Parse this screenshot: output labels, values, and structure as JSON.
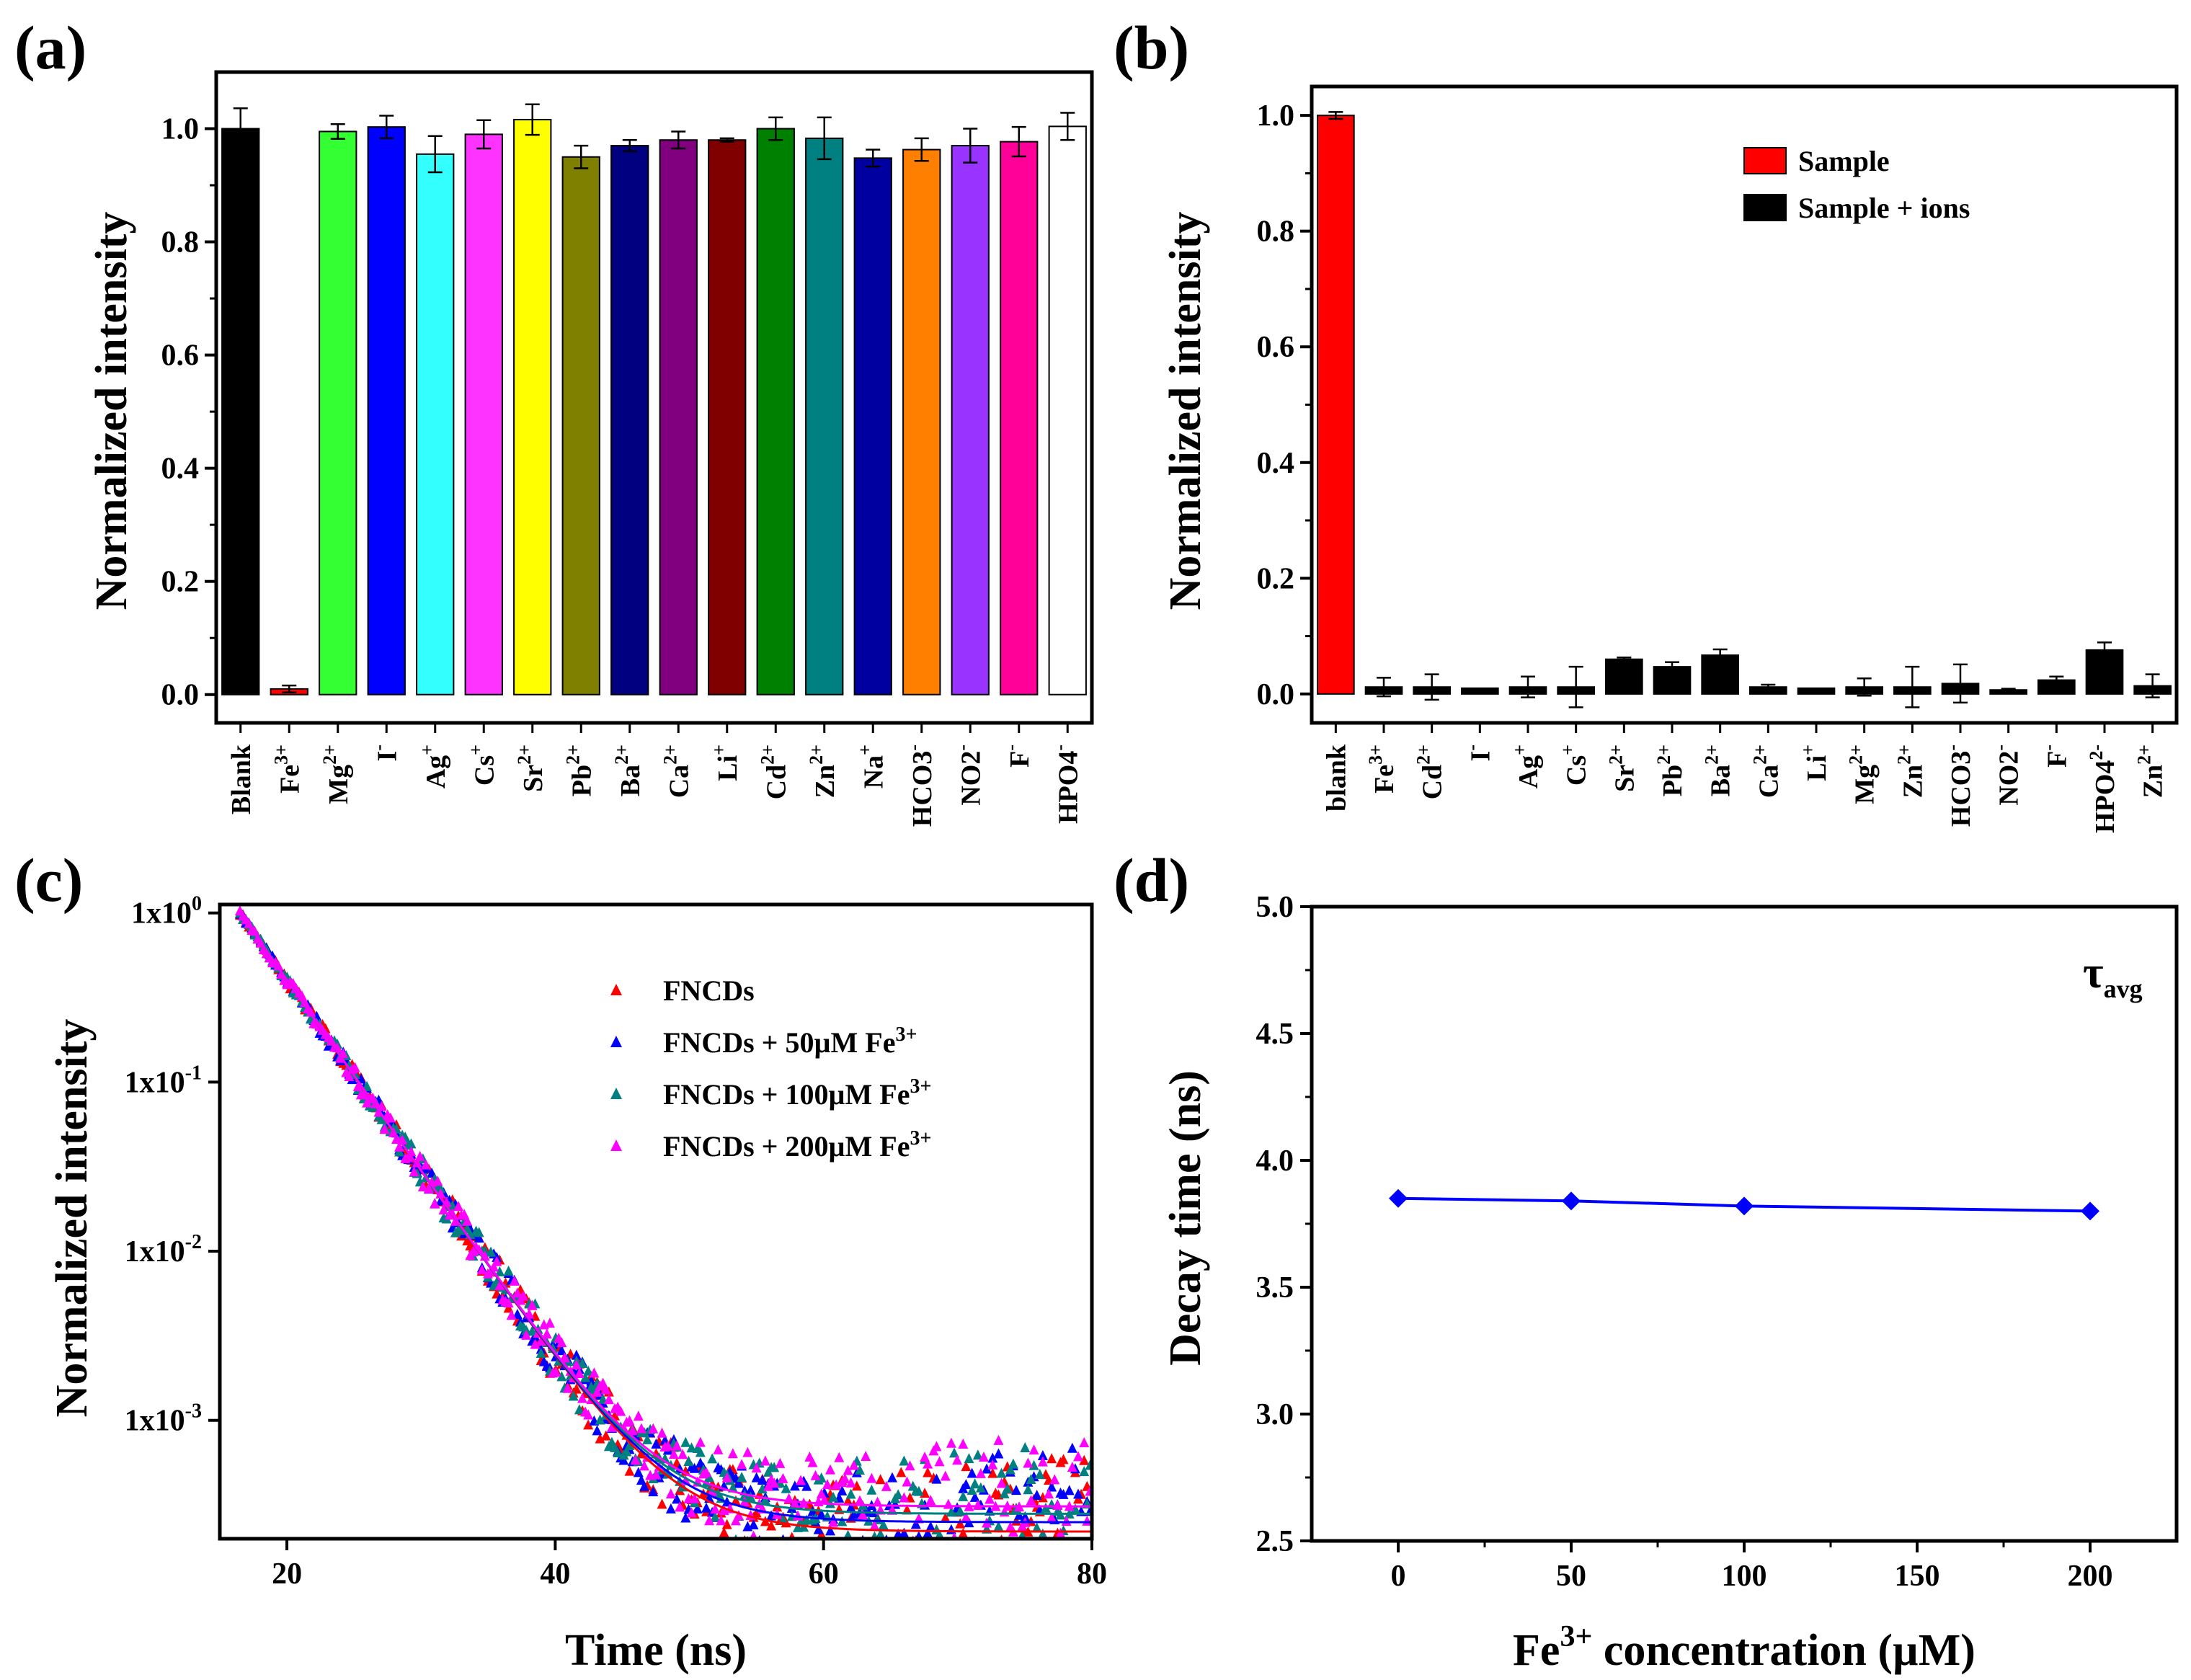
{
  "figure": {
    "panels": [
      "(a)",
      "(b)",
      "(c)",
      "(d)"
    ]
  },
  "chart_data": [
    {
      "id": "a",
      "type": "bar",
      "panel_label": "(a)",
      "ylabel": "Normalized intensity",
      "xlabel": "",
      "ylim": [
        -0.05,
        1.1
      ],
      "yticks": [
        "0.0",
        "0.2",
        "0.4",
        "0.6",
        "0.8",
        "1.0"
      ],
      "categories": [
        {
          "base": "Blank",
          "sup": ""
        },
        {
          "base": "Fe",
          "sup": "3+"
        },
        {
          "base": "Mg",
          "sup": "2+"
        },
        {
          "base": "I",
          "sup": "-"
        },
        {
          "base": "Ag",
          "sup": "+"
        },
        {
          "base": "Cs",
          "sup": "+"
        },
        {
          "base": "Sr",
          "sup": "2+"
        },
        {
          "base": "Pb",
          "sup": "2+"
        },
        {
          "base": "Ba",
          "sup": "2+"
        },
        {
          "base": "Ca",
          "sup": "2+"
        },
        {
          "base": "Li",
          "sup": "+"
        },
        {
          "base": "Cd",
          "sup": "2+"
        },
        {
          "base": "Zn",
          "sup": "2+"
        },
        {
          "base": "Na",
          "sup": "+"
        },
        {
          "base": "HCO3",
          "sup": "-"
        },
        {
          "base": "NO2",
          "sup": "-"
        },
        {
          "base": "F",
          "sup": "-"
        },
        {
          "base": "HPO4",
          "sup": "-"
        }
      ],
      "values": [
        1.0,
        0.01,
        0.995,
        1.003,
        0.955,
        0.99,
        1.016,
        0.95,
        0.97,
        0.98,
        0.98,
        1.0,
        0.983,
        0.948,
        0.963,
        0.97,
        0.977,
        1.004
      ],
      "errors": [
        0.036,
        0.006,
        0.013,
        0.02,
        0.032,
        0.025,
        0.027,
        0.02,
        0.01,
        0.015,
        0.003,
        0.02,
        0.037,
        0.015,
        0.02,
        0.03,
        0.026,
        0.024
      ],
      "colors": [
        "#000000",
        "#ff0000",
        "#33ff33",
        "#0000ff",
        "#33ffff",
        "#ff33ff",
        "#ffff00",
        "#808000",
        "#000080",
        "#800080",
        "#800000",
        "#008000",
        "#008080",
        "#0000a0",
        "#ff8000",
        "#9933ff",
        "#ff0099",
        "#ffffff"
      ]
    },
    {
      "id": "b",
      "type": "bar",
      "panel_label": "(b)",
      "ylabel": "Normalized intensity",
      "xlabel": "",
      "ylim": [
        -0.05,
        1.05
      ],
      "yticks": [
        "0.0",
        "0.2",
        "0.4",
        "0.6",
        "0.8",
        "1.0"
      ],
      "legend": [
        {
          "label": "Sample",
          "color": "#ff0000"
        },
        {
          "label": "Sample + ions",
          "color": "#000000"
        }
      ],
      "legend_position": "top-right",
      "categories": [
        {
          "base": "blank",
          "sup": ""
        },
        {
          "base": "Fe",
          "sup": "3+"
        },
        {
          "base": "Cd",
          "sup": "2+"
        },
        {
          "base": "I",
          "sup": "-"
        },
        {
          "base": "Ag",
          "sup": "+"
        },
        {
          "base": "Cs",
          "sup": "+"
        },
        {
          "base": "Sr",
          "sup": "2+"
        },
        {
          "base": "Pb",
          "sup": "2+"
        },
        {
          "base": "Ba",
          "sup": "2+"
        },
        {
          "base": "Ca",
          "sup": "2+"
        },
        {
          "base": "Li",
          "sup": "+"
        },
        {
          "base": "Mg",
          "sup": "2+"
        },
        {
          "base": "Zn",
          "sup": "2+"
        },
        {
          "base": "HCO3",
          "sup": "-"
        },
        {
          "base": "NO2",
          "sup": "-"
        },
        {
          "base": "F",
          "sup": "-"
        },
        {
          "base": "HPO4",
          "sup": "2-"
        },
        {
          "base": "Zn",
          "sup": "2+"
        }
      ],
      "values": [
        1.0,
        0.012,
        0.012,
        0.01,
        0.012,
        0.012,
        0.06,
        0.047,
        0.067,
        0.012,
        0.01,
        0.012,
        0.012,
        0.018,
        0.007,
        0.024,
        0.076,
        0.014
      ],
      "errors": [
        0.006,
        0.016,
        0.022,
        0.0,
        0.018,
        0.035,
        0.003,
        0.008,
        0.01,
        0.004,
        0.0,
        0.015,
        0.035,
        0.033,
        0.002,
        0.006,
        0.013,
        0.02
      ],
      "colors": [
        "#ff0000",
        "#000000",
        "#000000",
        "#000000",
        "#000000",
        "#000000",
        "#000000",
        "#000000",
        "#000000",
        "#000000",
        "#000000",
        "#000000",
        "#000000",
        "#000000",
        "#000000",
        "#000000",
        "#000000",
        "#000000"
      ]
    },
    {
      "id": "c",
      "type": "scatter",
      "panel_label": "(c)",
      "xlabel": "Time (ns)",
      "ylabel": "Normalized intensity",
      "xlim": [
        15,
        80
      ],
      "ylog": true,
      "ylim_log10": [
        -3.7,
        0.05
      ],
      "xticks": [
        20,
        40,
        60,
        80
      ],
      "yticks": [
        {
          "label": "1x10",
          "exp": "0",
          "log": 0
        },
        {
          "label": "1x10",
          "exp": "-1",
          "log": -1
        },
        {
          "label": "1x10",
          "exp": "-2",
          "log": -2
        },
        {
          "label": "1x10",
          "exp": "-3",
          "log": -3
        }
      ],
      "decay": {
        "start_time": 16.5,
        "tau_ns": 3.84,
        "floor": 0.00022
      },
      "series": [
        {
          "name": "FNCDs",
          "sup": "",
          "color": "#ff0000"
        },
        {
          "name": "FNCDs + 50µM Fe",
          "sup": "3+",
          "color": "#0000ff"
        },
        {
          "name": "FNCDs + 100µM Fe",
          "sup": "3+",
          "color": "#008080"
        },
        {
          "name": "FNCDs + 200µM Fe",
          "sup": "3+",
          "color": "#ff00ff"
        }
      ]
    },
    {
      "id": "d",
      "type": "line",
      "panel_label": "(d)",
      "xlabel_base": "Fe",
      "xlabel_sup": "3+",
      "xlabel_rest": " concentration (µM)",
      "ylabel": "Decay time (ns)",
      "xlim": [
        -25,
        225
      ],
      "ylim": [
        2.5,
        5.0
      ],
      "xticks": [
        0,
        50,
        100,
        150,
        200
      ],
      "yticks": [
        "2.5",
        "3.0",
        "3.5",
        "4.0",
        "4.5",
        "5.0"
      ],
      "annotation_base": "τ",
      "annotation_sub": "avg",
      "series": [
        {
          "name": "τavg",
          "color": "#0000ff",
          "x": [
            0,
            50,
            100,
            200
          ],
          "y": [
            3.85,
            3.84,
            3.82,
            3.8
          ]
        }
      ]
    }
  ]
}
